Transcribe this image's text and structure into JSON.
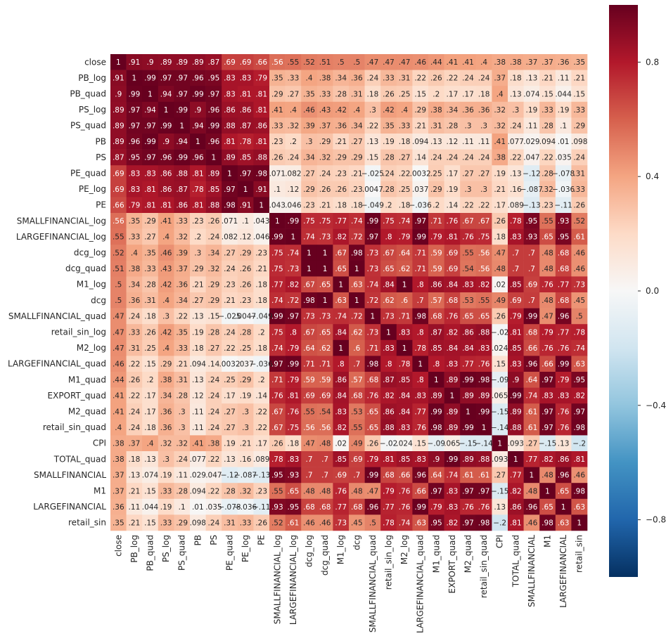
{
  "chart_data": {
    "type": "heatmap",
    "title": "",
    "xlabel": "",
    "ylabel": "",
    "vmin": -1,
    "vmax": 1,
    "colormap": "RdBu_r",
    "colormap_stops": [
      {
        "v": -1.0,
        "color": "#053061"
      },
      {
        "v": -0.8,
        "color": "#2166ac"
      },
      {
        "v": -0.6,
        "color": "#4393c3"
      },
      {
        "v": -0.4,
        "color": "#92c5de"
      },
      {
        "v": -0.2,
        "color": "#d1e5f0"
      },
      {
        "v": 0.0,
        "color": "#f7f7f7"
      },
      {
        "v": 0.2,
        "color": "#fddbc7"
      },
      {
        "v": 0.4,
        "color": "#f4a582"
      },
      {
        "v": 0.6,
        "color": "#d6604d"
      },
      {
        "v": 0.8,
        "color": "#b2182b"
      },
      {
        "v": 1.0,
        "color": "#67001f"
      }
    ],
    "colorbar_ticks": [
      {
        "value": 0.8,
        "label": "0.8"
      },
      {
        "value": 0.4,
        "label": "0.4"
      },
      {
        "value": 0.0,
        "label": "0.0"
      },
      {
        "value": -0.4,
        "label": "−0.4"
      },
      {
        "value": -0.8,
        "label": "−0.8"
      }
    ],
    "variables": [
      "close",
      "PB_log",
      "PB_quad",
      "PS_log",
      "PS_quad",
      "PB",
      "PS",
      "PE_quad",
      "PE_log",
      "PE",
      "SMALLFINANCIAL_log",
      "LARGEFINANCIAL_log",
      "dcg_log",
      "dcg_quad",
      "M1_log",
      "dcg",
      "SMALLFINANCIAL_quad",
      "retail_sin_log",
      "M2_log",
      "LARGEFINANCIAL_quad",
      "M1_quad",
      "EXPORT_quad",
      "M2_quad",
      "retail_sin_quad",
      "CPI",
      "TOTAL_quad",
      "SMALLFINANCIAL",
      "M1",
      "LARGEFINANCIAL",
      "retail_sin"
    ],
    "values": [
      [
        1,
        0.91,
        0.9,
        0.89,
        0.89,
        0.89,
        0.87,
        0.69,
        0.69,
        0.66,
        0.56,
        0.55,
        0.52,
        0.51,
        0.5,
        0.5,
        0.47,
        0.47,
        0.47,
        0.46,
        0.44,
        0.41,
        0.41,
        0.4,
        0.38,
        0.38,
        0.37,
        0.37,
        0.36,
        0.35
      ],
      [
        0.91,
        1,
        0.99,
        0.97,
        0.97,
        0.96,
        0.95,
        0.83,
        0.83,
        0.79,
        0.35,
        0.33,
        0.4,
        0.38,
        0.34,
        0.36,
        0.24,
        0.33,
        0.31,
        0.22,
        0.26,
        0.22,
        0.24,
        0.24,
        0.37,
        0.18,
        0.13,
        0.21,
        0.11,
        0.21
      ],
      [
        0.9,
        0.99,
        1,
        0.94,
        0.97,
        0.99,
        0.97,
        0.83,
        0.81,
        0.81,
        0.29,
        0.27,
        0.35,
        0.33,
        0.28,
        0.31,
        0.18,
        0.26,
        0.25,
        0.15,
        0.2,
        0.17,
        0.17,
        0.18,
        0.4,
        0.13,
        0.074,
        0.15,
        0.044,
        0.15
      ],
      [
        0.89,
        0.97,
        0.94,
        1,
        0.99,
        0.9,
        0.96,
        0.86,
        0.86,
        0.81,
        0.41,
        0.4,
        0.46,
        0.43,
        0.42,
        0.4,
        0.3,
        0.42,
        0.4,
        0.29,
        0.38,
        0.34,
        0.36,
        0.36,
        0.32,
        0.3,
        0.19,
        0.33,
        0.19,
        0.33
      ],
      [
        0.89,
        0.97,
        0.97,
        0.99,
        1,
        0.94,
        0.99,
        0.88,
        0.87,
        0.86,
        0.33,
        0.32,
        0.39,
        0.37,
        0.36,
        0.34,
        0.22,
        0.35,
        0.33,
        0.21,
        0.31,
        0.28,
        0.3,
        0.3,
        0.32,
        0.24,
        0.11,
        0.28,
        0.1,
        0.29
      ],
      [
        0.89,
        0.96,
        0.99,
        0.9,
        0.94,
        1,
        0.96,
        0.81,
        0.78,
        0.81,
        0.23,
        0.2,
        0.3,
        0.29,
        0.21,
        0.27,
        0.13,
        0.19,
        0.18,
        0.094,
        0.13,
        0.12,
        0.11,
        0.11,
        0.41,
        0.077,
        0.029,
        0.094,
        0.01,
        0.098
      ],
      [
        0.87,
        0.95,
        0.97,
        0.96,
        0.99,
        0.96,
        1,
        0.89,
        0.85,
        0.88,
        0.26,
        0.24,
        0.34,
        0.32,
        0.29,
        0.29,
        0.15,
        0.28,
        0.27,
        0.14,
        0.24,
        0.24,
        0.24,
        0.24,
        0.38,
        0.22,
        0.047,
        0.22,
        0.035,
        0.24
      ],
      [
        0.69,
        0.83,
        0.83,
        0.86,
        0.88,
        0.81,
        0.89,
        1,
        0.97,
        0.98,
        0.071,
        0.082,
        0.27,
        0.24,
        0.23,
        0.21,
        -0.025,
        0.24,
        0.22,
        0.0032,
        0.25,
        0.17,
        0.27,
        0.27,
        0.19,
        0.13,
        -0.12,
        0.28,
        -0.078,
        0.31
      ],
      [
        0.69,
        0.83,
        0.81,
        0.86,
        0.87,
        0.78,
        0.85,
        0.97,
        1,
        0.91,
        0.1,
        0.12,
        0.29,
        0.26,
        0.26,
        0.23,
        0.0047,
        0.28,
        0.25,
        0.037,
        0.29,
        0.19,
        0.3,
        0.3,
        0.21,
        0.16,
        -0.087,
        0.32,
        -0.036,
        0.33
      ],
      [
        0.66,
        0.79,
        0.81,
        0.81,
        0.86,
        0.81,
        0.88,
        0.98,
        0.91,
        1,
        0.043,
        0.046,
        0.23,
        0.21,
        0.18,
        0.18,
        -0.049,
        0.2,
        0.18,
        -0.036,
        0.2,
        0.14,
        0.22,
        0.22,
        0.17,
        0.089,
        -0.13,
        0.23,
        -0.11,
        0.26
      ],
      [
        0.56,
        0.35,
        0.29,
        0.41,
        0.33,
        0.23,
        0.26,
        0.071,
        0.1,
        0.043,
        1,
        0.99,
        0.75,
        0.75,
        0.77,
        0.74,
        0.99,
        0.75,
        0.74,
        0.97,
        0.71,
        0.76,
        0.67,
        0.67,
        0.26,
        0.78,
        0.95,
        0.55,
        0.93,
        0.52
      ],
      [
        0.55,
        0.33,
        0.27,
        0.4,
        0.32,
        0.2,
        0.24,
        0.082,
        0.12,
        0.046,
        0.99,
        1,
        0.74,
        0.73,
        0.82,
        0.72,
        0.97,
        0.8,
        0.79,
        0.99,
        0.79,
        0.81,
        0.76,
        0.75,
        0.18,
        0.83,
        0.93,
        0.65,
        0.95,
        0.61
      ],
      [
        0.52,
        0.4,
        0.35,
        0.46,
        0.39,
        0.3,
        0.34,
        0.27,
        0.29,
        0.23,
        0.75,
        0.74,
        1,
        1,
        0.67,
        0.98,
        0.73,
        0.67,
        0.64,
        0.71,
        0.59,
        0.69,
        0.55,
        0.56,
        0.47,
        0.7,
        0.7,
        0.48,
        0.68,
        0.46
      ],
      [
        0.51,
        0.38,
        0.33,
        0.43,
        0.37,
        0.29,
        0.32,
        0.24,
        0.26,
        0.21,
        0.75,
        0.73,
        1,
        1,
        0.65,
        1,
        0.73,
        0.65,
        0.62,
        0.71,
        0.59,
        0.69,
        0.54,
        0.56,
        0.48,
        0.7,
        0.7,
        0.48,
        0.68,
        0.46
      ],
      [
        0.5,
        0.34,
        0.28,
        0.42,
        0.36,
        0.21,
        0.29,
        0.23,
        0.26,
        0.18,
        0.77,
        0.82,
        0.67,
        0.65,
        1,
        0.63,
        0.74,
        0.84,
        1,
        0.8,
        0.86,
        0.84,
        0.83,
        0.82,
        0.02,
        0.85,
        0.69,
        0.76,
        0.77,
        0.73
      ],
      [
        0.5,
        0.36,
        0.31,
        0.4,
        0.34,
        0.27,
        0.29,
        0.21,
        0.23,
        0.18,
        0.74,
        0.72,
        0.98,
        1,
        0.63,
        1,
        0.72,
        0.62,
        0.6,
        0.7,
        0.57,
        0.68,
        0.53,
        0.55,
        0.49,
        0.69,
        0.7,
        0.48,
        0.68,
        0.45
      ],
      [
        0.47,
        0.24,
        0.18,
        0.3,
        0.22,
        0.13,
        0.15,
        -0.025,
        0.0047,
        -0.049,
        0.99,
        0.97,
        0.73,
        0.73,
        0.74,
        0.72,
        1,
        0.73,
        0.71,
        0.98,
        0.68,
        0.76,
        0.65,
        0.65,
        0.26,
        0.79,
        0.99,
        0.47,
        0.96,
        0.5
      ],
      [
        0.47,
        0.33,
        0.26,
        0.42,
        0.35,
        0.19,
        0.28,
        0.24,
        0.28,
        0.2,
        0.75,
        0.8,
        0.67,
        0.65,
        0.84,
        0.62,
        0.73,
        1,
        0.83,
        0.8,
        0.87,
        0.82,
        0.86,
        0.88,
        -0.02,
        0.81,
        0.68,
        0.79,
        0.77,
        0.78
      ],
      [
        0.47,
        0.31,
        0.25,
        0.4,
        0.33,
        0.18,
        0.27,
        0.22,
        0.25,
        0.18,
        0.74,
        0.79,
        0.64,
        0.62,
        1,
        0.6,
        0.71,
        0.83,
        1,
        0.78,
        0.85,
        0.84,
        0.84,
        0.83,
        0.024,
        0.85,
        0.66,
        0.76,
        0.76,
        0.74
      ],
      [
        0.46,
        0.22,
        0.15,
        0.29,
        0.21,
        0.094,
        0.14,
        0.0032,
        0.037,
        -0.036,
        0.97,
        0.99,
        0.71,
        0.71,
        0.8,
        0.7,
        0.98,
        0.8,
        0.78,
        1,
        0.8,
        0.83,
        0.77,
        0.76,
        0.15,
        0.83,
        0.96,
        0.66,
        0.99,
        0.63
      ],
      [
        0.44,
        0.26,
        0.2,
        0.38,
        0.31,
        0.13,
        0.24,
        0.25,
        0.29,
        0.2,
        0.71,
        0.79,
        0.59,
        0.59,
        0.86,
        0.57,
        0.68,
        0.87,
        0.85,
        0.8,
        1,
        0.89,
        0.99,
        0.98,
        -0.09,
        0.9,
        0.64,
        0.97,
        0.79,
        0.95
      ],
      [
        0.41,
        0.22,
        0.17,
        0.34,
        0.28,
        0.12,
        0.24,
        0.17,
        0.19,
        0.14,
        0.76,
        0.81,
        0.69,
        0.69,
        0.84,
        0.68,
        0.76,
        0.82,
        0.84,
        0.83,
        0.89,
        1,
        0.89,
        0.89,
        0.065,
        0.99,
        0.74,
        0.83,
        0.83,
        0.82
      ],
      [
        0.41,
        0.24,
        0.17,
        0.36,
        0.3,
        0.11,
        0.24,
        0.27,
        0.3,
        0.22,
        0.67,
        0.76,
        0.55,
        0.54,
        0.83,
        0.53,
        0.65,
        0.86,
        0.84,
        0.77,
        0.99,
        0.89,
        1,
        0.99,
        -0.15,
        0.89,
        0.61,
        0.97,
        0.76,
        0.97
      ],
      [
        0.4,
        0.24,
        0.18,
        0.36,
        0.3,
        0.11,
        0.24,
        0.27,
        0.3,
        0.22,
        0.67,
        0.75,
        0.56,
        0.56,
        0.82,
        0.55,
        0.65,
        0.88,
        0.83,
        0.76,
        0.98,
        0.89,
        0.99,
        1,
        -0.14,
        0.88,
        0.61,
        0.97,
        0.76,
        0.98
      ],
      [
        0.38,
        0.37,
        0.4,
        0.32,
        0.32,
        0.41,
        0.38,
        0.19,
        0.21,
        0.17,
        0.26,
        0.18,
        0.47,
        0.48,
        0.02,
        0.49,
        0.26,
        -0.02,
        0.024,
        0.15,
        -0.09,
        0.065,
        -0.15,
        -0.14,
        1,
        0.093,
        0.27,
        -0.15,
        0.13,
        -0.2
      ],
      [
        0.38,
        0.18,
        0.13,
        0.3,
        0.24,
        0.077,
        0.22,
        0.13,
        0.16,
        0.089,
        0.78,
        0.83,
        0.7,
        0.7,
        0.85,
        0.69,
        0.79,
        0.81,
        0.85,
        0.83,
        0.9,
        0.99,
        0.89,
        0.88,
        0.093,
        1,
        0.77,
        0.82,
        0.86,
        0.81
      ],
      [
        0.37,
        0.13,
        0.074,
        0.19,
        0.11,
        0.029,
        0.047,
        -0.12,
        -0.087,
        -0.13,
        0.95,
        0.93,
        0.7,
        0.7,
        0.69,
        0.7,
        0.99,
        0.68,
        0.66,
        0.96,
        0.64,
        0.74,
        0.61,
        0.61,
        0.27,
        0.77,
        1,
        0.48,
        0.96,
        0.46
      ],
      [
        0.37,
        0.21,
        0.15,
        0.33,
        0.28,
        0.094,
        0.22,
        0.28,
        0.32,
        0.23,
        0.55,
        0.65,
        0.48,
        0.48,
        0.76,
        0.48,
        0.47,
        0.79,
        0.76,
        0.66,
        0.97,
        0.83,
        0.97,
        0.97,
        -0.15,
        0.82,
        0.48,
        1,
        0.65,
        0.98
      ],
      [
        0.36,
        0.11,
        0.044,
        0.19,
        0.1,
        0.01,
        0.035,
        -0.078,
        -0.036,
        -0.11,
        0.93,
        0.95,
        0.68,
        0.68,
        0.77,
        0.68,
        0.96,
        0.77,
        0.76,
        0.99,
        0.79,
        0.83,
        0.76,
        0.76,
        0.13,
        0.86,
        0.96,
        0.65,
        1,
        0.63
      ],
      [
        0.35,
        0.21,
        0.15,
        0.33,
        0.29,
        0.098,
        0.24,
        0.31,
        0.33,
        0.26,
        0.52,
        0.61,
        0.46,
        0.46,
        0.73,
        0.45,
        0.5,
        0.78,
        0.74,
        0.63,
        0.95,
        0.82,
        0.97,
        0.98,
        -0.2,
        0.81,
        0.46,
        0.98,
        0.63,
        1
      ]
    ]
  }
}
